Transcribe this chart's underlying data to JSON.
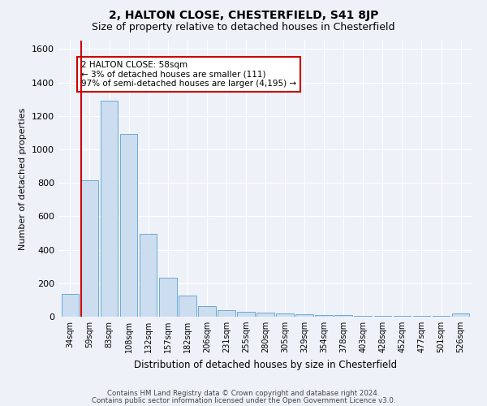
{
  "title1": "2, HALTON CLOSE, CHESTERFIELD, S41 8JP",
  "title2": "Size of property relative to detached houses in Chesterfield",
  "xlabel": "Distribution of detached houses by size in Chesterfield",
  "ylabel": "Number of detached properties",
  "categories": [
    "34sqm",
    "59sqm",
    "83sqm",
    "108sqm",
    "132sqm",
    "157sqm",
    "182sqm",
    "206sqm",
    "231sqm",
    "255sqm",
    "280sqm",
    "305sqm",
    "329sqm",
    "354sqm",
    "378sqm",
    "403sqm",
    "428sqm",
    "452sqm",
    "477sqm",
    "501sqm",
    "526sqm"
  ],
  "values": [
    135,
    815,
    1290,
    1090,
    495,
    232,
    128,
    65,
    38,
    28,
    25,
    18,
    15,
    12,
    8,
    5,
    5,
    3,
    3,
    3,
    18
  ],
  "bar_color": "#ccddf0",
  "bar_edge_color": "#6aaad4",
  "vline_color": "#cc0000",
  "annotation_text": "2 HALTON CLOSE: 58sqm\n← 3% of detached houses are smaller (111)\n97% of semi-detached houses are larger (4,195) →",
  "annotation_box_color": "#cc0000",
  "ylim": [
    0,
    1650
  ],
  "yticks": [
    0,
    200,
    400,
    600,
    800,
    1000,
    1200,
    1400,
    1600
  ],
  "footer1": "Contains HM Land Registry data © Crown copyright and database right 2024.",
  "footer2": "Contains public sector information licensed under the Open Government Licence v3.0.",
  "bg_color": "#eef2f8",
  "grid_color": "#ffffff",
  "title1_fontsize": 10,
  "title2_fontsize": 9
}
